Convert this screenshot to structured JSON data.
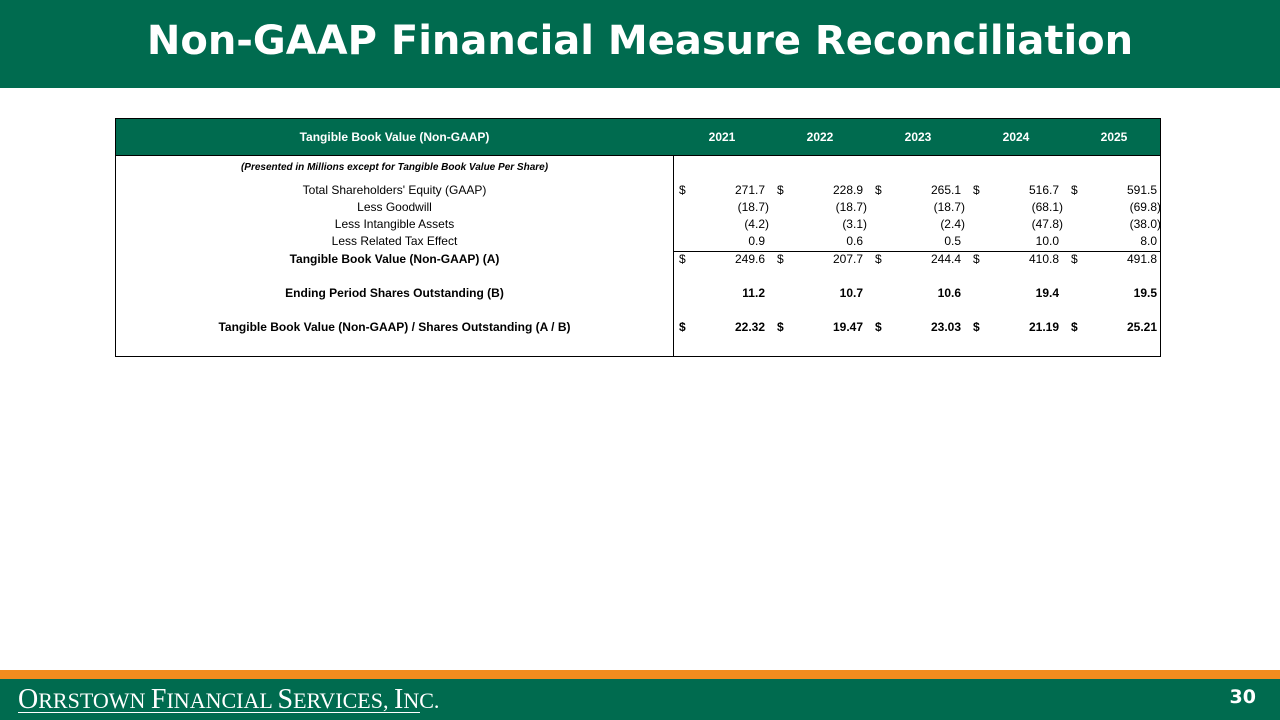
{
  "slide": {
    "title": "Non-GAAP Financial Measure Reconciliation",
    "page_number": "30"
  },
  "table": {
    "header_label": "Tangible Book Value (Non-GAAP)",
    "years": [
      "2021",
      "2022",
      "2023",
      "2024",
      "2025"
    ],
    "subtitle": "(Presented in Millions except for Tangible Book Value Per Share)",
    "rows": [
      {
        "label": "Total Shareholders' Equity (GAAP)",
        "currency": [
          "$",
          "$",
          "$",
          "$",
          "$"
        ],
        "values": [
          "271.7",
          "228.9",
          "265.1",
          "516.7",
          "591.5"
        ]
      },
      {
        "label": "Less Goodwill",
        "currency": [
          "",
          "",
          "",
          "",
          ""
        ],
        "values": [
          "(18.7)",
          "(18.7)",
          "(18.7)",
          "(68.1)",
          "(69.8)"
        ]
      },
      {
        "label": "Less Intangible Assets",
        "currency": [
          "",
          "",
          "",
          "",
          ""
        ],
        "values": [
          "(4.2)",
          "(3.1)",
          "(2.4)",
          "(47.8)",
          "(38.0)"
        ]
      },
      {
        "label": "Less Related Tax Effect",
        "currency": [
          "",
          "",
          "",
          "",
          ""
        ],
        "values": [
          "0.9",
          "0.6",
          "0.5",
          "10.0",
          "8.0"
        ]
      },
      {
        "label": "Tangible Book Value (Non-GAAP) (A)",
        "currency": [
          "$",
          "$",
          "$",
          "$",
          "$"
        ],
        "values": [
          "249.6",
          "207.7",
          "244.4",
          "410.8",
          "491.8"
        ]
      },
      {
        "label": "Ending Period Shares Outstanding (B)",
        "currency": [
          "",
          "",
          "",
          "",
          ""
        ],
        "values": [
          "11.2",
          "10.7",
          "10.6",
          "19.4",
          "19.5"
        ]
      },
      {
        "label": "Tangible Book Value (Non-GAAP) / Shares Outstanding (A / B)",
        "currency": [
          "$",
          "$",
          "$",
          "$",
          "$"
        ],
        "values": [
          "22.32",
          "19.47",
          "23.03",
          "21.19",
          "25.21"
        ]
      }
    ]
  },
  "footer": {
    "logo_text": "Orrstown Financial Services, Inc."
  },
  "colors": {
    "brand_green": "#006b4f",
    "accent_orange": "#f28c1e"
  }
}
